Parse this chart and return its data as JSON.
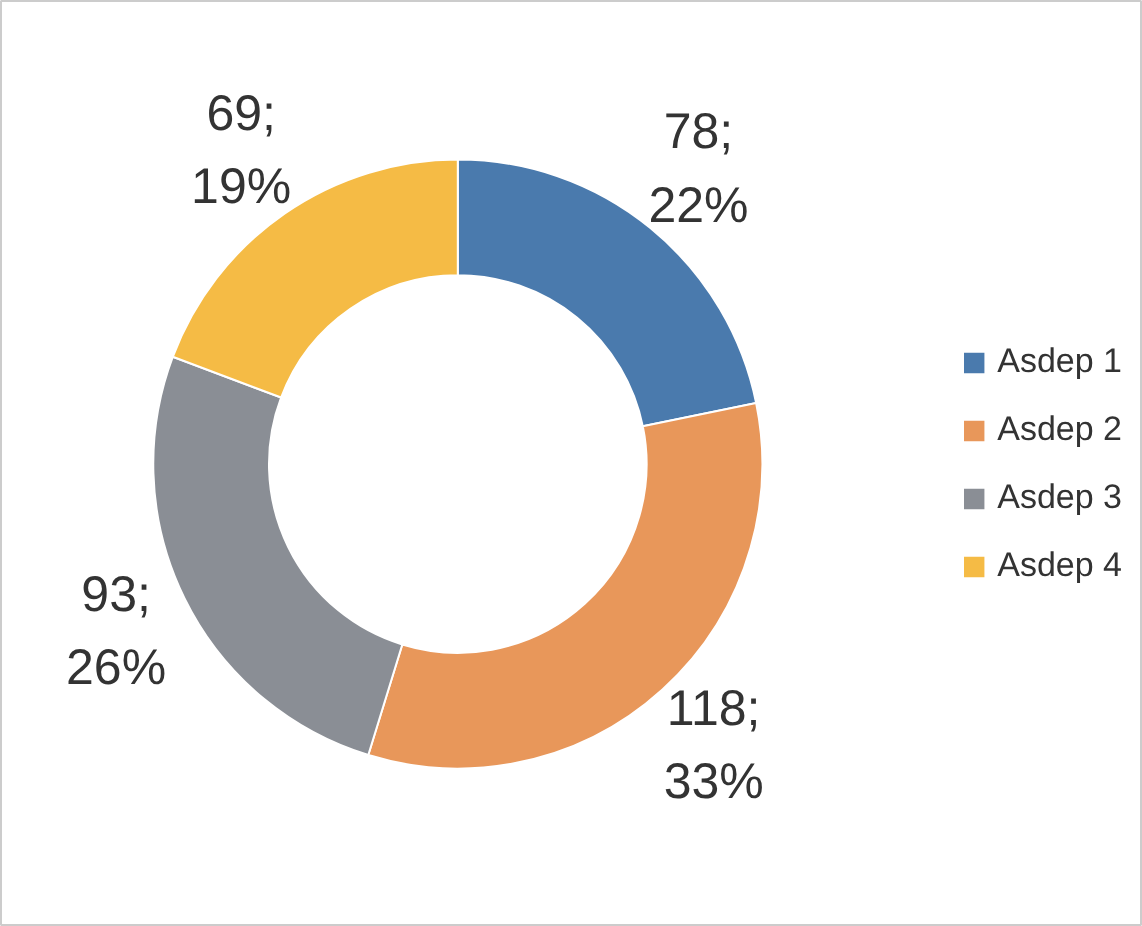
{
  "chart_data": {
    "type": "donut",
    "categories": [
      "Asdep 1",
      "Asdep 2",
      "Asdep 3",
      "Asdep 4"
    ],
    "values": [
      78,
      118,
      93,
      69
    ],
    "colors": [
      "#4a7aad",
      "#e8975a",
      "#8a8e95",
      "#f5bb45"
    ],
    "value_labels": [
      "78;\n22%",
      "118;\n33%",
      "93;\n26%",
      "69;\n19%"
    ],
    "legend": "right"
  }
}
